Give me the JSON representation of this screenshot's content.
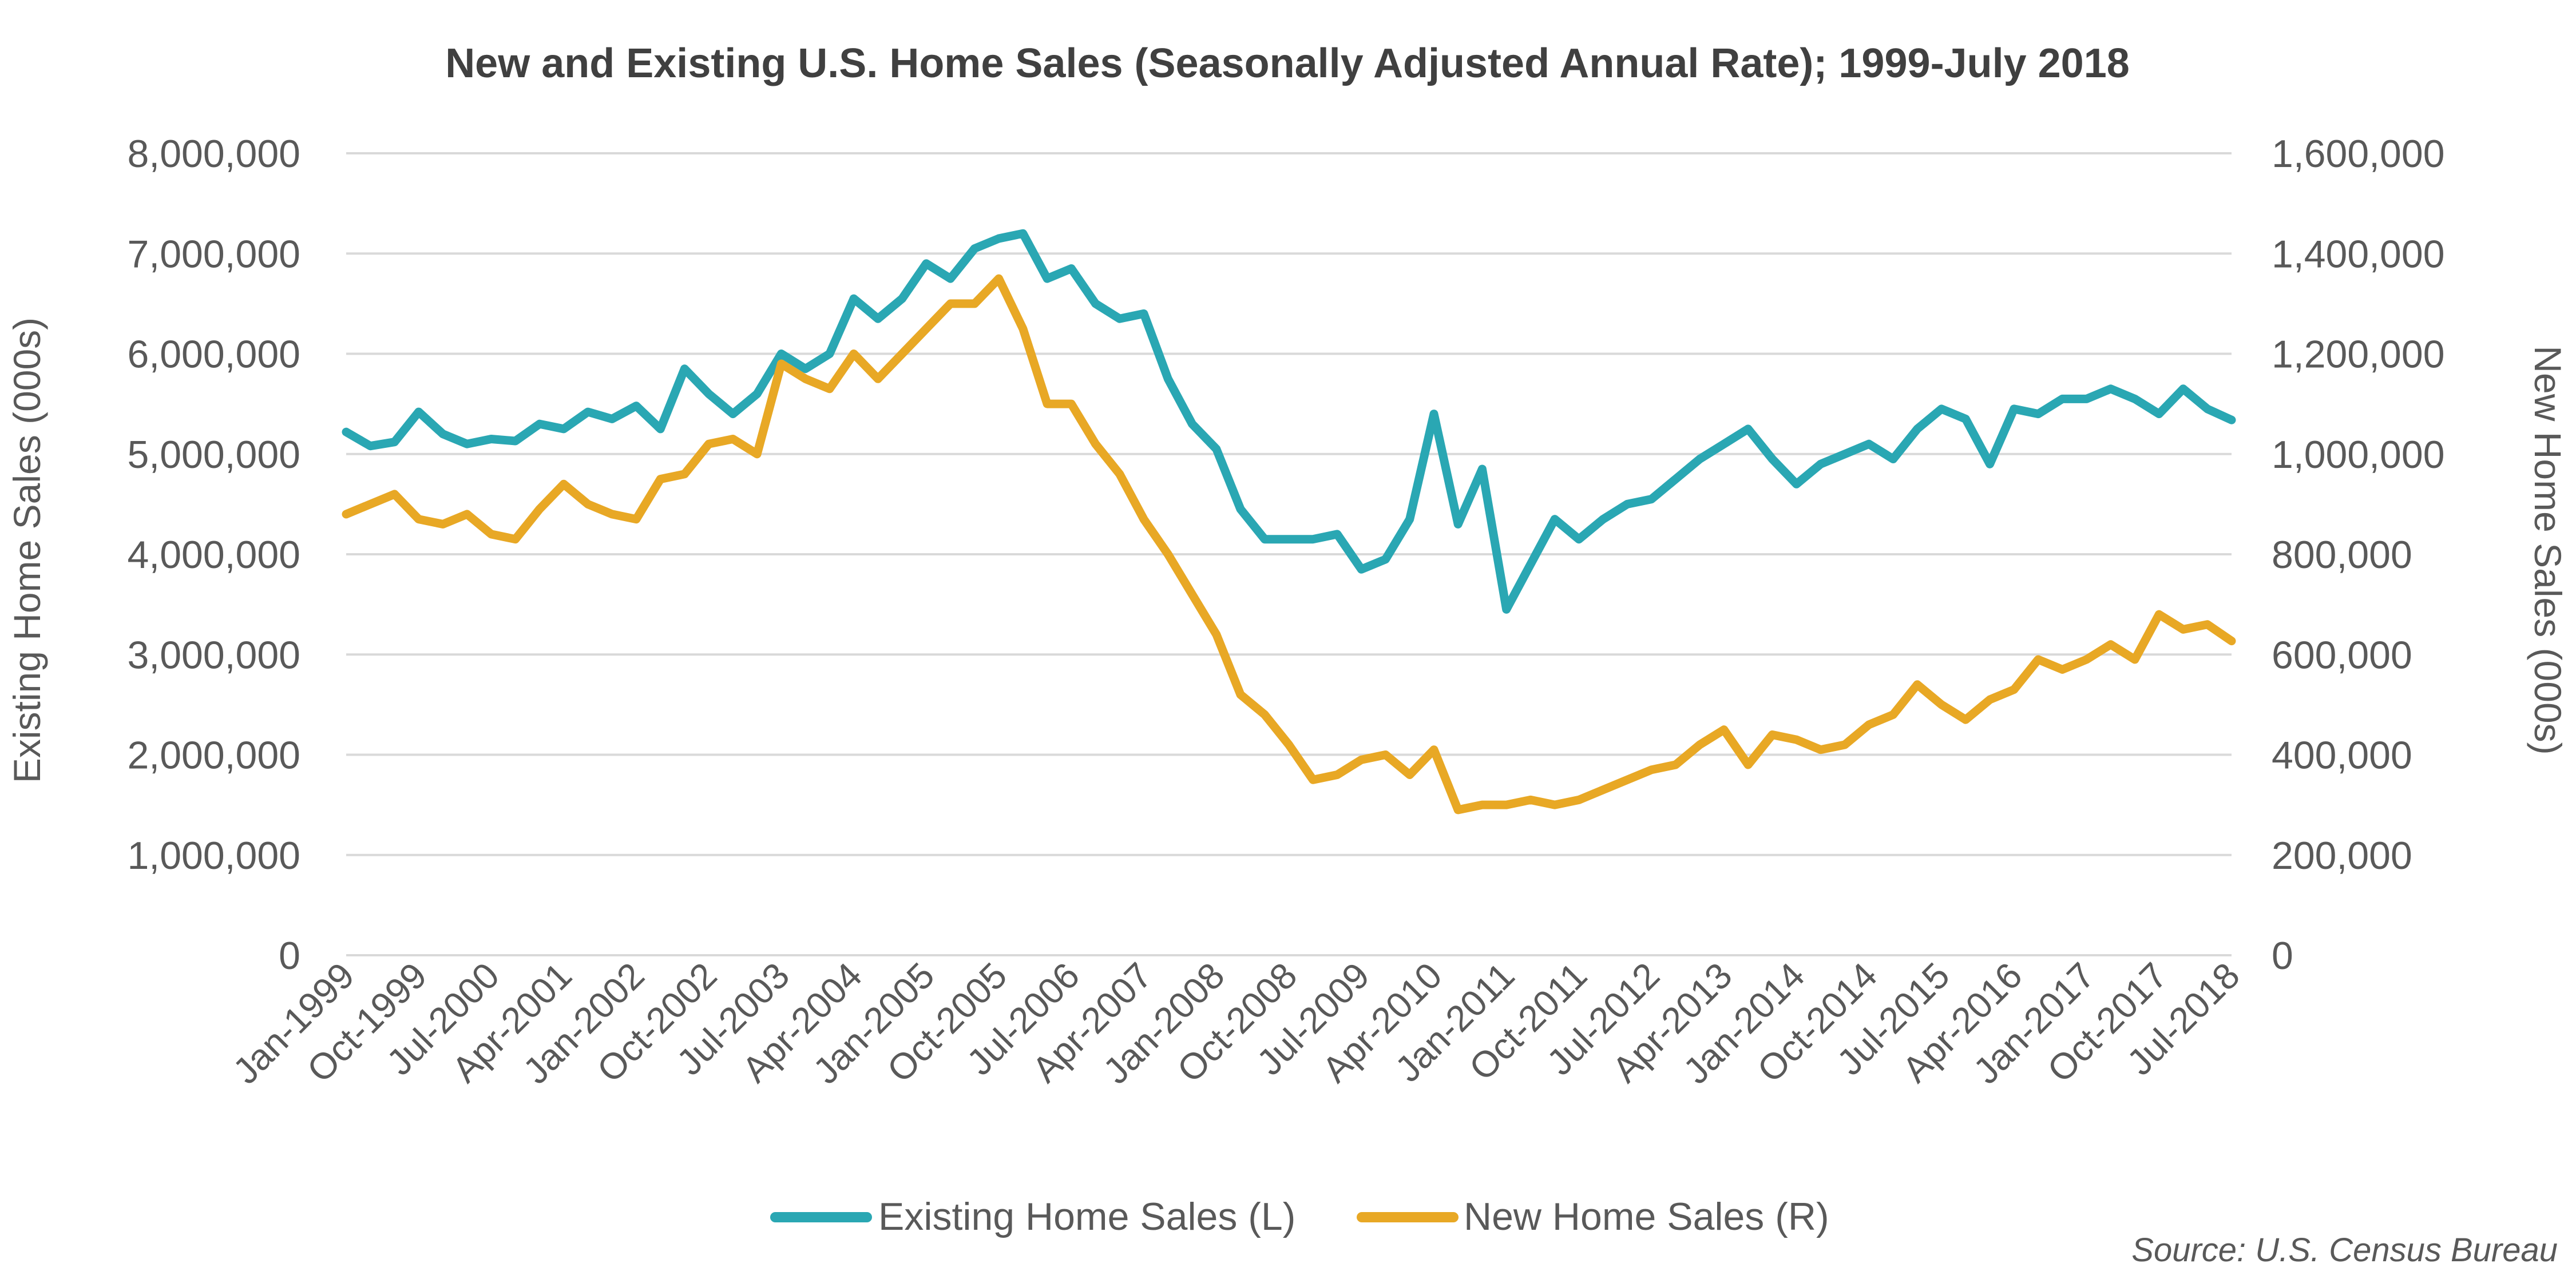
{
  "colors": {
    "existing": "#2aa7b3",
    "new": "#e8a825",
    "grid": "#d9d9d9",
    "text": "#595959"
  },
  "chart_data": {
    "type": "line",
    "title": "New and Existing U.S. Home Sales (Seasonally Adjusted Annual Rate); 1999-July 2018",
    "ylabel_left": "Existing Home Sales (000s)",
    "ylabel_right": "New Home Sales (000s)",
    "source": "Source: U.S. Census Bureau",
    "grid": true,
    "legend_position": "bottom-center",
    "ylim_left": [
      0,
      8000000
    ],
    "ylim_right": [
      0,
      1600000
    ],
    "yticks_left": [
      "0",
      "1,000,000",
      "2,000,000",
      "3,000,000",
      "4,000,000",
      "5,000,000",
      "6,000,000",
      "7,000,000",
      "8,000,000"
    ],
    "yticks_right": [
      "0",
      "200,000",
      "400,000",
      "600,000",
      "800,000",
      "1,000,000",
      "1,200,000",
      "1,400,000",
      "1,600,000"
    ],
    "x_start": "Jan-1999",
    "x_end": "Jul-2018",
    "x_tick_labels": [
      "Jan-1999",
      "Oct-1999",
      "Jul-2000",
      "Apr-2001",
      "Jan-2002",
      "Oct-2002",
      "Jul-2003",
      "Apr-2004",
      "Jan-2005",
      "Oct-2005",
      "Jul-2006",
      "Apr-2007",
      "Jan-2008",
      "Oct-2008",
      "Jul-2009",
      "Apr-2010",
      "Jan-2011",
      "Oct-2011",
      "Jul-2012",
      "Apr-2013",
      "Jan-2014",
      "Oct-2014",
      "Jul-2015",
      "Apr-2016",
      "Jan-2017",
      "Oct-2017",
      "Jul-2018"
    ],
    "series": [
      {
        "name": "Existing Home Sales (L)",
        "axis": "left",
        "points": [
          [
            "Jan-1999",
            5220000
          ],
          [
            "Apr-1999",
            5080000
          ],
          [
            "Jul-1999",
            5120000
          ],
          [
            "Oct-1999",
            5420000
          ],
          [
            "Jan-2000",
            5200000
          ],
          [
            "Apr-2000",
            5100000
          ],
          [
            "Jul-2000",
            5150000
          ],
          [
            "Oct-2000",
            5130000
          ],
          [
            "Jan-2001",
            5300000
          ],
          [
            "Apr-2001",
            5250000
          ],
          [
            "Jul-2001",
            5420000
          ],
          [
            "Oct-2001",
            5350000
          ],
          [
            "Jan-2002",
            5480000
          ],
          [
            "Apr-2002",
            5250000
          ],
          [
            "Jul-2002",
            5850000
          ],
          [
            "Oct-2002",
            5600000
          ],
          [
            "Jan-2003",
            5400000
          ],
          [
            "Apr-2003",
            5600000
          ],
          [
            "Jul-2003",
            6000000
          ],
          [
            "Oct-2003",
            5850000
          ],
          [
            "Jan-2004",
            6000000
          ],
          [
            "Apr-2004",
            6550000
          ],
          [
            "Jul-2004",
            6350000
          ],
          [
            "Oct-2004",
            6550000
          ],
          [
            "Jan-2005",
            6900000
          ],
          [
            "Apr-2005",
            6750000
          ],
          [
            "Jul-2005",
            7050000
          ],
          [
            "Oct-2005",
            7150000
          ],
          [
            "Jan-2006",
            7200000
          ],
          [
            "Apr-2006",
            6750000
          ],
          [
            "Jul-2006",
            6850000
          ],
          [
            "Oct-2006",
            6500000
          ],
          [
            "Jan-2007",
            6350000
          ],
          [
            "Apr-2007",
            6400000
          ],
          [
            "Jul-2007",
            5750000
          ],
          [
            "Oct-2007",
            5300000
          ],
          [
            "Jan-2008",
            5050000
          ],
          [
            "Apr-2008",
            4450000
          ],
          [
            "Jul-2008",
            4150000
          ],
          [
            "Oct-2008",
            4150000
          ],
          [
            "Jan-2009",
            4150000
          ],
          [
            "Apr-2009",
            4200000
          ],
          [
            "Jul-2009",
            3850000
          ],
          [
            "Oct-2009",
            3950000
          ],
          [
            "Jan-2010",
            4350000
          ],
          [
            "Apr-2010",
            5400000
          ],
          [
            "Jul-2010",
            4300000
          ],
          [
            "Oct-2010",
            4850000
          ],
          [
            "Jan-2011",
            3450000
          ],
          [
            "Apr-2011",
            3900000
          ],
          [
            "Jul-2011",
            4350000
          ],
          [
            "Oct-2011",
            4150000
          ],
          [
            "Jan-2012",
            4350000
          ],
          [
            "Apr-2012",
            4500000
          ],
          [
            "Jul-2012",
            4550000
          ],
          [
            "Oct-2012",
            4750000
          ],
          [
            "Jan-2013",
            4950000
          ],
          [
            "Apr-2013",
            5100000
          ],
          [
            "Jul-2013",
            5250000
          ],
          [
            "Oct-2013",
            4950000
          ],
          [
            "Jan-2014",
            4700000
          ],
          [
            "Apr-2014",
            4900000
          ],
          [
            "Jul-2014",
            5000000
          ],
          [
            "Oct-2014",
            5100000
          ],
          [
            "Jan-2015",
            4950000
          ],
          [
            "Apr-2015",
            5250000
          ],
          [
            "Jul-2015",
            5450000
          ],
          [
            "Oct-2015",
            5350000
          ],
          [
            "Jan-2016",
            4900000
          ],
          [
            "Apr-2016",
            5450000
          ],
          [
            "Jul-2016",
            5400000
          ],
          [
            "Oct-2016",
            5550000
          ],
          [
            "Jan-2017",
            5550000
          ],
          [
            "Apr-2017",
            5650000
          ],
          [
            "Jul-2017",
            5550000
          ],
          [
            "Oct-2017",
            5400000
          ],
          [
            "Jan-2018",
            5650000
          ],
          [
            "Apr-2018",
            5450000
          ],
          [
            "Jul-2018",
            5340000
          ]
        ]
      },
      {
        "name": "New Home Sales (R)",
        "axis": "right",
        "points": [
          [
            "Jan-1999",
            880000
          ],
          [
            "Apr-1999",
            900000
          ],
          [
            "Jul-1999",
            920000
          ],
          [
            "Oct-1999",
            870000
          ],
          [
            "Jan-2000",
            860000
          ],
          [
            "Apr-2000",
            880000
          ],
          [
            "Jul-2000",
            840000
          ],
          [
            "Oct-2000",
            830000
          ],
          [
            "Jan-2001",
            890000
          ],
          [
            "Apr-2001",
            940000
          ],
          [
            "Jul-2001",
            900000
          ],
          [
            "Oct-2001",
            880000
          ],
          [
            "Jan-2002",
            870000
          ],
          [
            "Apr-2002",
            950000
          ],
          [
            "Jul-2002",
            960000
          ],
          [
            "Oct-2002",
            1020000
          ],
          [
            "Jan-2003",
            1030000
          ],
          [
            "Apr-2003",
            1000000
          ],
          [
            "Jul-2003",
            1180000
          ],
          [
            "Oct-2003",
            1150000
          ],
          [
            "Jan-2004",
            1130000
          ],
          [
            "Apr-2004",
            1200000
          ],
          [
            "Jul-2004",
            1150000
          ],
          [
            "Oct-2004",
            1200000
          ],
          [
            "Jan-2005",
            1250000
          ],
          [
            "Apr-2005",
            1300000
          ],
          [
            "Jul-2005",
            1300000
          ],
          [
            "Oct-2005",
            1350000
          ],
          [
            "Jan-2006",
            1250000
          ],
          [
            "Apr-2006",
            1100000
          ],
          [
            "Jul-2006",
            1100000
          ],
          [
            "Oct-2006",
            1020000
          ],
          [
            "Jan-2007",
            960000
          ],
          [
            "Apr-2007",
            870000
          ],
          [
            "Jul-2007",
            800000
          ],
          [
            "Oct-2007",
            720000
          ],
          [
            "Jan-2008",
            640000
          ],
          [
            "Apr-2008",
            520000
          ],
          [
            "Jul-2008",
            480000
          ],
          [
            "Oct-2008",
            420000
          ],
          [
            "Jan-2009",
            350000
          ],
          [
            "Apr-2009",
            360000
          ],
          [
            "Jul-2009",
            390000
          ],
          [
            "Oct-2009",
            400000
          ],
          [
            "Jan-2010",
            360000
          ],
          [
            "Apr-2010",
            410000
          ],
          [
            "Jul-2010",
            290000
          ],
          [
            "Oct-2010",
            300000
          ],
          [
            "Jan-2011",
            300000
          ],
          [
            "Apr-2011",
            310000
          ],
          [
            "Jul-2011",
            300000
          ],
          [
            "Oct-2011",
            310000
          ],
          [
            "Jan-2012",
            330000
          ],
          [
            "Apr-2012",
            350000
          ],
          [
            "Jul-2012",
            370000
          ],
          [
            "Oct-2012",
            380000
          ],
          [
            "Jan-2013",
            420000
          ],
          [
            "Apr-2013",
            450000
          ],
          [
            "Jul-2013",
            380000
          ],
          [
            "Oct-2013",
            440000
          ],
          [
            "Jan-2014",
            430000
          ],
          [
            "Apr-2014",
            410000
          ],
          [
            "Jul-2014",
            420000
          ],
          [
            "Oct-2014",
            460000
          ],
          [
            "Jan-2015",
            480000
          ],
          [
            "Apr-2015",
            540000
          ],
          [
            "Jul-2015",
            500000
          ],
          [
            "Oct-2015",
            470000
          ],
          [
            "Jan-2016",
            510000
          ],
          [
            "Apr-2016",
            530000
          ],
          [
            "Jul-2016",
            590000
          ],
          [
            "Oct-2016",
            570000
          ],
          [
            "Jan-2017",
            590000
          ],
          [
            "Apr-2017",
            620000
          ],
          [
            "Jul-2017",
            590000
          ],
          [
            "Oct-2017",
            680000
          ],
          [
            "Jan-2018",
            650000
          ],
          [
            "Apr-2018",
            660000
          ],
          [
            "Jul-2018",
            627000
          ]
        ]
      }
    ]
  }
}
